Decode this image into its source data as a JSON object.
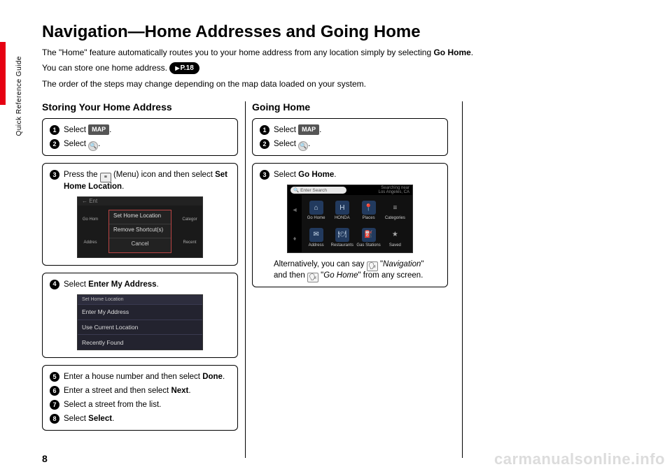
{
  "side_label": "Quick Reference Guide",
  "page_number": "8",
  "watermark": "carmanualsonline.info",
  "title": "Navigation—Home Addresses and Going Home",
  "intro": {
    "line1_a": "The \"Home\" feature automatically routes you to your home address from any location simply by selecting ",
    "line1_b": "Go Home",
    "line1_c": ".",
    "line2_a": "You can store one home address. ",
    "pref": "P.18",
    "line3": "The order of the steps may change depending on the map data loaded on your system."
  },
  "col1": {
    "heading": "Storing Your Home Address",
    "box1": {
      "s1": {
        "n": "1",
        "a": "Select ",
        "btn": "MAP",
        "b": "."
      },
      "s2": {
        "n": "2",
        "a": "Select ",
        "icon": "🔍",
        "b": "."
      }
    },
    "box2": {
      "s3": {
        "n": "3",
        "a": "Press the ",
        "menu": "≡",
        "b": " (Menu) icon and then select ",
        "bold": "Set Home Location",
        "c": "."
      },
      "ss": {
        "topbar": "← Ent",
        "left": [
          "Go Hom",
          "Addres"
        ],
        "right": [
          "Categor",
          "Recent"
        ],
        "popup": [
          "Set Home Location",
          "Remove Shortcut(s)",
          "Cancel"
        ]
      }
    },
    "box3": {
      "s4": {
        "n": "4",
        "a": "Select ",
        "bold": "Enter My Address",
        "b": "."
      },
      "ss": {
        "hdr": "Set Home Location",
        "rows": [
          "Enter My Address",
          "Use Current Location",
          "Recently Found"
        ]
      }
    },
    "box4": {
      "s5": {
        "n": "5",
        "a": "Enter a house number and then select ",
        "bold": "Done",
        "b": "."
      },
      "s6": {
        "n": "6",
        "a": "Enter a street and then select ",
        "bold": "Next",
        "b": "."
      },
      "s7": {
        "n": "7",
        "a": "Select a street from the list."
      },
      "s8": {
        "n": "8",
        "a": "Select ",
        "bold": "Select",
        "b": "."
      }
    }
  },
  "col2": {
    "heading": "Going Home",
    "box1": {
      "s1": {
        "n": "1",
        "a": "Select ",
        "btn": "MAP",
        "b": "."
      },
      "s2": {
        "n": "2",
        "a": "Select ",
        "icon": "🔍",
        "b": "."
      }
    },
    "box2": {
      "s3": {
        "n": "3",
        "a": "Select ",
        "bold": "Go Home",
        "b": "."
      },
      "ss": {
        "search_icon": "🔍",
        "search": "Enter Search",
        "loc1": "Searching near",
        "loc2": "Los Angeles, CA",
        "left": [
          "◄",
          "♦"
        ],
        "tiles": [
          {
            "ic": "⌂",
            "lb": "Go Home"
          },
          {
            "ic": "H",
            "lb": "HONDA"
          },
          {
            "ic": "📍",
            "lb": "Places"
          },
          {
            "ic": "≡",
            "lb": "Categories"
          },
          {
            "ic": "✉",
            "lb": "Address"
          },
          {
            "ic": "🍽",
            "lb": "Restaurants"
          },
          {
            "ic": "⛽",
            "lb": "Gas Stations"
          },
          {
            "ic": "★",
            "lb": "Saved"
          }
        ]
      },
      "alt_a": "Alternatively, you can say ",
      "alt_b": " \"",
      "alt_nav": "Navigation",
      "alt_c": "\" and then ",
      "alt_d": " \"",
      "alt_go": "Go Home",
      "alt_e": "\" from any screen."
    }
  }
}
